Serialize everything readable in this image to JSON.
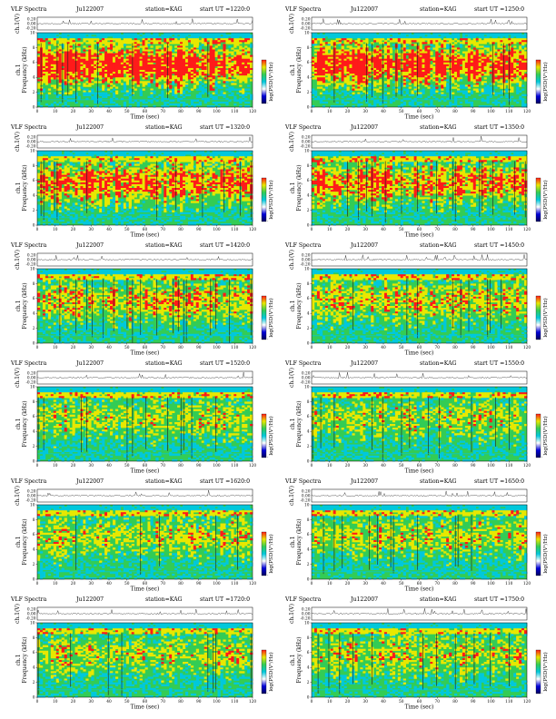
{
  "chart_data": {
    "type": "heatmap",
    "title_prefix": "VLF Spectra",
    "date": "Ju122007",
    "station": "station=KAG",
    "start_ut_label": "start UT =",
    "ylabel_top": "ch.1(V)",
    "ylabel_spec_1": "ch.1",
    "ylabel_spec_2": "Frequency (kHz)",
    "xlabel": "Time (sec)",
    "colorbar_label": "log(PSD(V²/Hz)",
    "x_ticks": [
      "0",
      "10",
      "20",
      "30",
      "40",
      "50",
      "60",
      "70",
      "80",
      "90",
      "100",
      "110",
      "120"
    ],
    "xlim": [
      0,
      120
    ],
    "y_ticks": [
      "0",
      "2",
      "4",
      "6",
      "8",
      "10"
    ],
    "ylim": [
      0,
      10
    ],
    "waveform_ticks": [
      "0.20",
      "0.00",
      "-0.20"
    ],
    "colors": {
      "cyan": "#00c8dc",
      "green": "#33cc55",
      "yellow": "#e8e800",
      "red": "#ff1a1a",
      "dark": "#202020",
      "blue": "#0000d8",
      "navy": "#000060",
      "white": "#ffffff"
    },
    "panels": [
      {
        "date": "Ju122007",
        "start_ut": "1220:0",
        "intensity": 0.95
      },
      {
        "date": "Ju122007",
        "start_ut": "1250:0",
        "intensity": 0.93
      },
      {
        "date": "Ju122007",
        "start_ut": "1320:0",
        "intensity": 0.78
      },
      {
        "date": "Ju122007",
        "start_ut": "1350:0",
        "intensity": 0.75
      },
      {
        "date": "Ju122007",
        "start_ut": "1420:0",
        "intensity": 0.62
      },
      {
        "date": "Ju122007",
        "start_ut": "1450:0",
        "intensity": 0.58
      },
      {
        "date": "Ju122007",
        "start_ut": "1520:0",
        "intensity": 0.45
      },
      {
        "date": "Ju122007",
        "start_ut": "1550:0",
        "intensity": 0.44
      },
      {
        "date": "Ju122007",
        "start_ut": "1620:0",
        "intensity": 0.5
      },
      {
        "date": "Ju122007",
        "start_ut": "1650:0",
        "intensity": 0.52
      },
      {
        "date": "Ju122007",
        "start_ut": "1720:0",
        "intensity": 0.48
      },
      {
        "date": "Ju122007",
        "start_ut": "1750:0",
        "intensity": 0.5
      }
    ]
  }
}
